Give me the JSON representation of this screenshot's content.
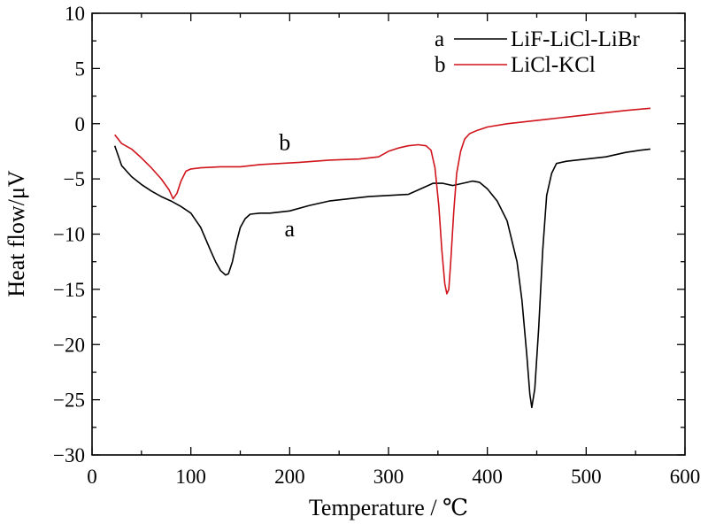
{
  "chart_data": {
    "type": "line",
    "title": "",
    "xlabel": "Temperature / ℃",
    "ylabel": "Heat flow/μV",
    "xlim": [
      0,
      600
    ],
    "ylim": [
      -30,
      10
    ],
    "xticks": [
      0,
      100,
      200,
      300,
      400,
      500,
      600
    ],
    "yticks": [
      10,
      5,
      0,
      -5,
      -10,
      -15,
      -20,
      -25,
      -30
    ],
    "grid": false,
    "legend_placement": "top-right",
    "series": [
      {
        "name": "LiF-LiCl-LiBr",
        "key": "a",
        "color": "#000000",
        "x": [
          23,
          30,
          40,
          50,
          60,
          70,
          80,
          90,
          100,
          110,
          120,
          125,
          130,
          135,
          138,
          142,
          146,
          150,
          155,
          160,
          170,
          180,
          200,
          220,
          240,
          260,
          280,
          300,
          320,
          335,
          345,
          355,
          365,
          375,
          385,
          392,
          400,
          410,
          420,
          430,
          435,
          440,
          443,
          445,
          448,
          452,
          456,
          460,
          465,
          470,
          480,
          500,
          520,
          540,
          555,
          565
        ],
        "y": [
          -2,
          -3.8,
          -4.8,
          -5.5,
          -6.1,
          -6.6,
          -7.0,
          -7.5,
          -8.1,
          -9.4,
          -11.5,
          -12.5,
          -13.3,
          -13.7,
          -13.6,
          -12.5,
          -10.8,
          -9.4,
          -8.6,
          -8.2,
          -8.1,
          -8.1,
          -7.9,
          -7.4,
          -7.0,
          -6.8,
          -6.6,
          -6.5,
          -6.4,
          -5.8,
          -5.4,
          -5.4,
          -5.6,
          -5.4,
          -5.2,
          -5.3,
          -5.9,
          -7.0,
          -8.8,
          -12.5,
          -16,
          -21,
          -24.5,
          -25.7,
          -24,
          -18.5,
          -11.5,
          -6.5,
          -4.5,
          -3.6,
          -3.4,
          -3.2,
          -3.0,
          -2.6,
          -2.4,
          -2.3
        ]
      },
      {
        "name": "LiCl-KCl",
        "key": "b",
        "color": "#d0141c",
        "x": [
          23,
          30,
          40,
          50,
          60,
          70,
          78,
          82,
          86,
          90,
          95,
          100,
          110,
          130,
          150,
          170,
          190,
          210,
          240,
          270,
          290,
          300,
          310,
          320,
          330,
          338,
          343,
          347,
          351,
          354,
          357,
          359,
          361,
          363,
          366,
          369,
          373,
          377,
          382,
          390,
          400,
          420,
          440,
          460,
          480,
          500,
          520,
          540,
          565
        ],
        "y": [
          -1.0,
          -1.8,
          -2.3,
          -3.1,
          -4.0,
          -5.0,
          -6.0,
          -6.8,
          -6.3,
          -5.2,
          -4.3,
          -4.1,
          -4.0,
          -3.9,
          -3.9,
          -3.7,
          -3.6,
          -3.5,
          -3.3,
          -3.2,
          -3.0,
          -2.5,
          -2.2,
          -2.0,
          -1.9,
          -2.0,
          -2.4,
          -4.0,
          -7.5,
          -11.5,
          -14.5,
          -15.4,
          -15.0,
          -12.5,
          -8.0,
          -4.5,
          -2.5,
          -1.4,
          -0.9,
          -0.6,
          -0.3,
          0.0,
          0.2,
          0.4,
          0.6,
          0.8,
          1.0,
          1.2,
          1.4
        ]
      }
    ],
    "annotations": [
      {
        "text": "b",
        "x": 195,
        "y": -2.4
      },
      {
        "text": "a",
        "x": 200,
        "y": -10.2
      }
    ]
  }
}
